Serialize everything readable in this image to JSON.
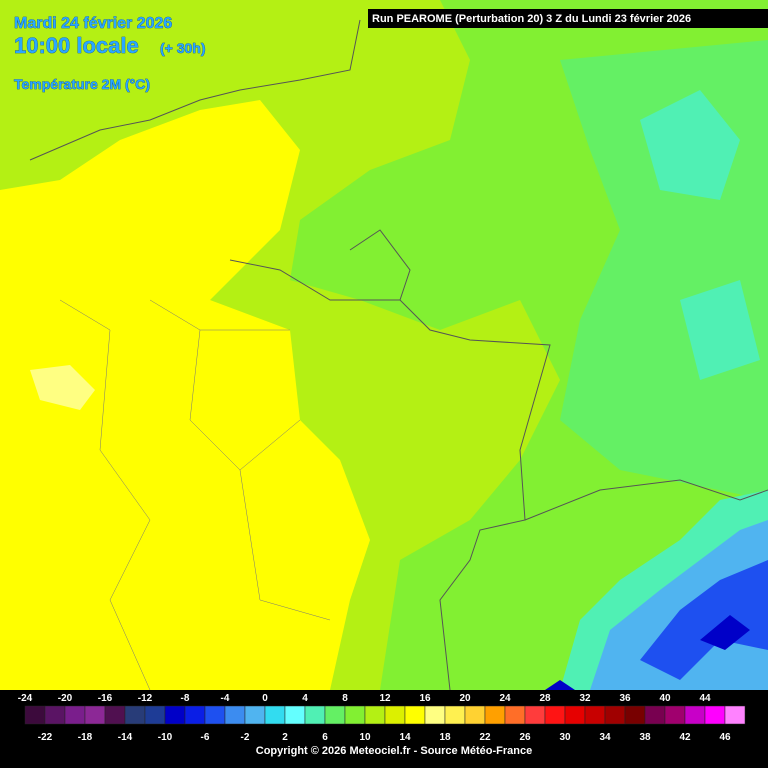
{
  "header": {
    "date": "Mardi 24 février 2026",
    "time": "10:00 locale",
    "offset": "(+ 30h)",
    "variable": "Température 2M (°C)",
    "run": "Run PEAROME (Perturbation 20) 3 Z du Lundi 23 février 2026"
  },
  "legend": {
    "colors": [
      "#3c0a3c",
      "#5a1464",
      "#7a1e8c",
      "#8c2896",
      "#501050",
      "#283c78",
      "#1e3c96",
      "#0000c8",
      "#0a1ee6",
      "#1e50f0",
      "#3c8cf0",
      "#50b4f0",
      "#32dcf0",
      "#64ffff",
      "#50f0b4",
      "#64f064",
      "#82f032",
      "#b4f014",
      "#dcf000",
      "#ffff00",
      "#ffff82",
      "#fff050",
      "#ffd232",
      "#ffa000",
      "#ff6e28",
      "#ff3c3c",
      "#ff1414",
      "#e60000",
      "#c80000",
      "#a00000",
      "#780000",
      "#780050",
      "#a0006e",
      "#c800c8",
      "#ff00ff",
      "#ff82ff"
    ],
    "top_labels": [
      "-24",
      "-20",
      "-16",
      "-12",
      "-8",
      "-4",
      "0",
      "4",
      "8",
      "12",
      "16",
      "20",
      "24",
      "28",
      "32",
      "36",
      "40",
      "44"
    ],
    "bottom_labels": [
      "-22",
      "-18",
      "-14",
      "-10",
      "-6",
      "-2",
      "2",
      "6",
      "10",
      "14",
      "18",
      "22",
      "26",
      "30",
      "34",
      "38",
      "42",
      "46"
    ]
  },
  "footer": {
    "copyright": "Copyright © 2026 Meteociel.fr - Source Météo-France"
  }
}
